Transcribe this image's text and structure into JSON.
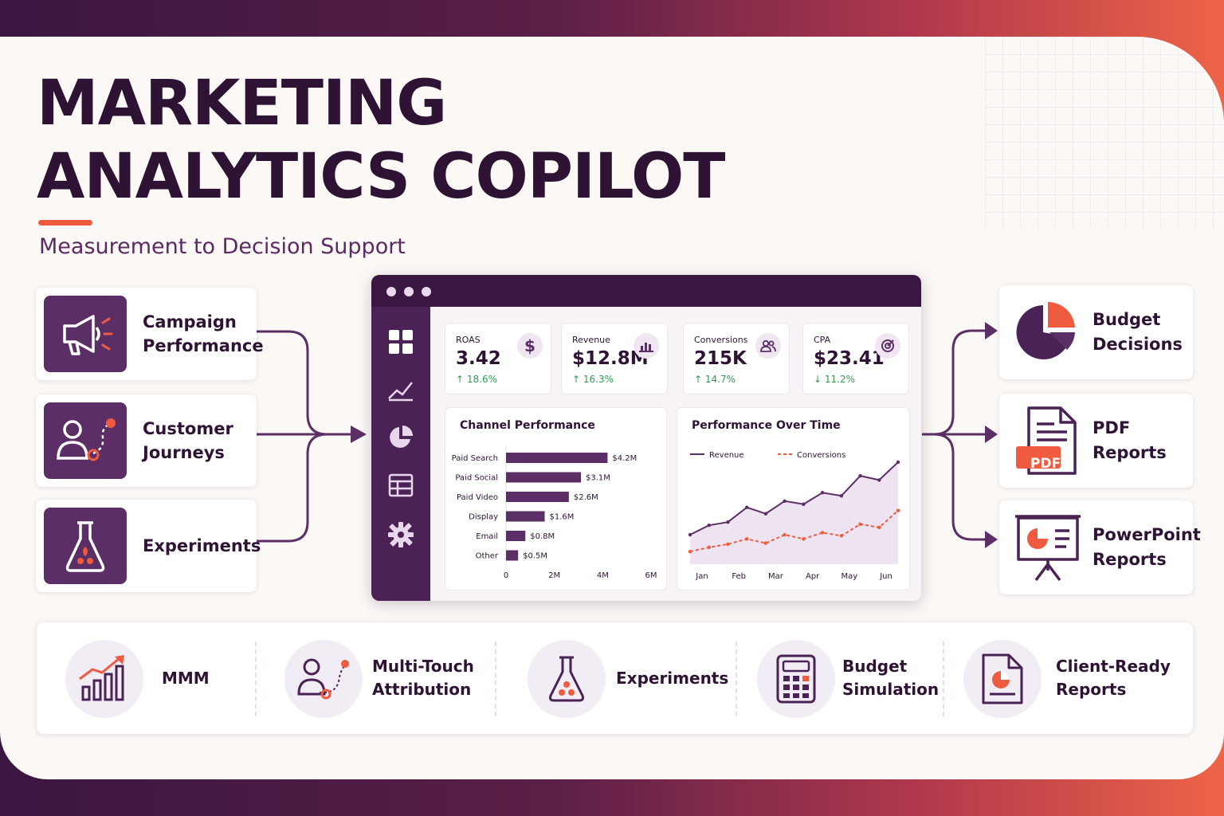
{
  "header": {
    "title_line1": "MARKETING",
    "title_line2": "ANALYTICS COPILOT",
    "subtitle": "Measurement to Decision Support"
  },
  "inputs": [
    {
      "line1": "Campaign",
      "line2": "Performance",
      "icon": "megaphone-icon"
    },
    {
      "line1": "Customer",
      "line2": "Journeys",
      "icon": "customer-journey-icon"
    },
    {
      "line1": "Experiments",
      "line2": "",
      "icon": "flask-icon"
    }
  ],
  "outputs": [
    {
      "line1": "Budget",
      "line2": "Decisions",
      "icon": "pie-chart-icon"
    },
    {
      "line1": "PDF",
      "line2": "Reports",
      "icon": "pdf-document-icon",
      "badge": "PDF"
    },
    {
      "line1": "PowerPoint",
      "line2": "Reports",
      "icon": "presentation-icon"
    }
  ],
  "dashboard": {
    "kpis": [
      {
        "label": "ROAS",
        "value": "3.42",
        "change": "↑ 18.6%",
        "icon": "dollar-icon",
        "trend": "up"
      },
      {
        "label": "Revenue",
        "value": "$12.8M",
        "change": "↑ 16.3%",
        "icon": "bar-chart-icon",
        "trend": "up"
      },
      {
        "label": "Conversions",
        "value": "215K",
        "change": "↑ 14.7%",
        "icon": "users-icon",
        "trend": "up"
      },
      {
        "label": "CPA",
        "value": "$23.41",
        "change": "↓ 11.2%",
        "icon": "target-icon",
        "trend": "down"
      }
    ]
  },
  "colors": {
    "primary": "#5b2f66",
    "dark": "#2e1335",
    "accent": "#ef5b3f",
    "positive": "#2f9a52"
  },
  "chart_data": [
    {
      "type": "bar",
      "orientation": "horizontal",
      "title": "Channel Performance",
      "categories": [
        "Paid Search",
        "Paid Social",
        "Paid Video",
        "Display",
        "Email",
        "Other"
      ],
      "values": [
        4.2,
        3.1,
        2.6,
        1.6,
        0.8,
        0.5
      ],
      "value_labels": [
        "$4.2M",
        "$3.1M",
        "$2.6M",
        "$1.6M",
        "$0.8M",
        "$0.5M"
      ],
      "xlim": [
        0,
        6
      ],
      "xticks": [
        "0",
        "2M",
        "4M",
        "6M"
      ]
    },
    {
      "type": "line",
      "title": "Performance Over Time",
      "x_labels": [
        "Jan",
        "Feb",
        "Mar",
        "Apr",
        "May",
        "Jun"
      ],
      "ylim": [
        0,
        100
      ],
      "legend_position": "top-left",
      "series": [
        {
          "name": "Revenue",
          "style": "solid-area",
          "values": [
            28,
            37,
            40,
            54,
            48,
            60,
            57,
            68,
            65,
            84,
            80,
            97
          ]
        },
        {
          "name": "Conversions",
          "style": "dashed",
          "values": [
            12,
            16,
            19,
            24,
            20,
            28,
            24,
            30,
            27,
            38,
            35,
            51
          ]
        }
      ]
    }
  ],
  "features": [
    {
      "line1": "MMM",
      "line2": "",
      "icon": "growth-chart-icon"
    },
    {
      "line1": "Multi-Touch",
      "line2": "Attribution",
      "icon": "attribution-icon"
    },
    {
      "line1": "Experiments",
      "line2": "",
      "icon": "flask-icon"
    },
    {
      "line1": "Budget",
      "line2": "Simulation",
      "icon": "calculator-icon"
    },
    {
      "line1": "Client-Ready",
      "line2": "Reports",
      "icon": "report-icon"
    }
  ]
}
